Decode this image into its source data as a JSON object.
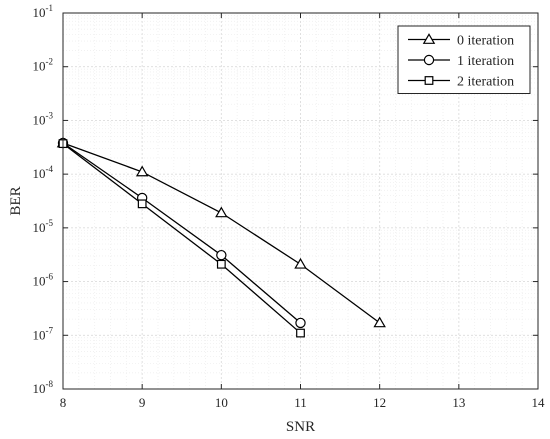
{
  "chart_data": {
    "type": "line",
    "xlabel": "SNR",
    "ylabel": "BER",
    "xlim": [
      8,
      14
    ],
    "ylim_exponents": [
      -8,
      -1
    ],
    "yscale": "log",
    "x_ticks": [
      8,
      9,
      10,
      11,
      12,
      13,
      14
    ],
    "y_tick_base": "10",
    "y_tick_exponents": [
      "-1",
      "-2",
      "-3",
      "-4",
      "-5",
      "-6",
      "-7",
      "-8"
    ],
    "grid": true,
    "minor_grid": true,
    "legend_position": "top-right",
    "series": [
      {
        "name": "0 iteration",
        "marker": "triangle",
        "x": [
          8,
          9,
          10,
          11,
          12
        ],
        "y": [
          0.00038,
          0.00011,
          1.9e-05,
          2.1e-06,
          1.7e-07
        ]
      },
      {
        "name": "1 iteration",
        "marker": "circle",
        "x": [
          8,
          9,
          10,
          11
        ],
        "y": [
          0.00038,
          3.6e-05,
          3.1e-06,
          1.7e-07
        ]
      },
      {
        "name": "2 iteration",
        "marker": "square",
        "x": [
          8,
          9,
          10,
          11
        ],
        "y": [
          0.00037,
          2.8e-05,
          2.1e-06,
          1.1e-07
        ]
      }
    ],
    "colors": {
      "line": "#000000",
      "axis": "#262626",
      "major_grid": "#dcdcdc",
      "minor_grid": "#efefef"
    }
  }
}
